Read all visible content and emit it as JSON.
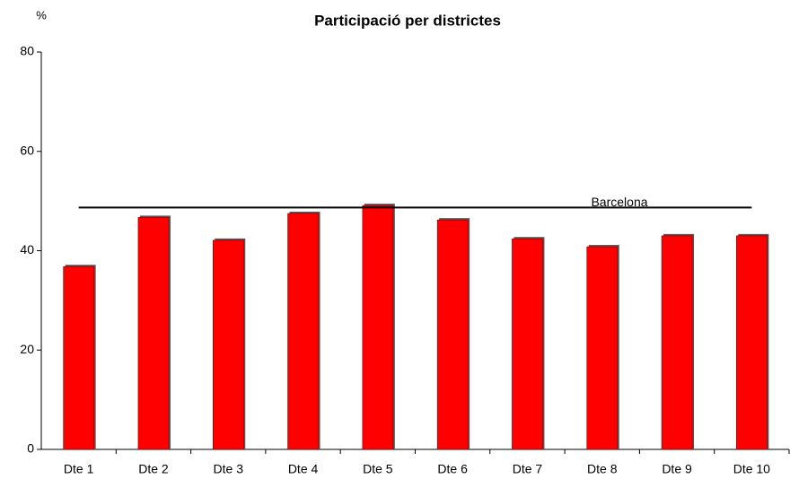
{
  "chart_data": {
    "type": "bar",
    "title": "Participació per districtes",
    "ylabel": "%",
    "categories": [
      "Dte 1",
      "Dte 2",
      "Dte 3",
      "Dte 4",
      "Dte 5",
      "Dte 6",
      "Dte 7",
      "Dte 8",
      "Dte 9",
      "Dte 10"
    ],
    "values": [
      36.8,
      46.7,
      42.1,
      47.5,
      49.1,
      46.2,
      42.4,
      40.8,
      43.0,
      43.0
    ],
    "color": "#ff0000",
    "reference_line": {
      "label": "Barcelona",
      "value": 48.7
    },
    "ylim": [
      0,
      80
    ],
    "yticks": [
      0,
      20,
      40,
      60,
      80
    ],
    "grid": false
  }
}
